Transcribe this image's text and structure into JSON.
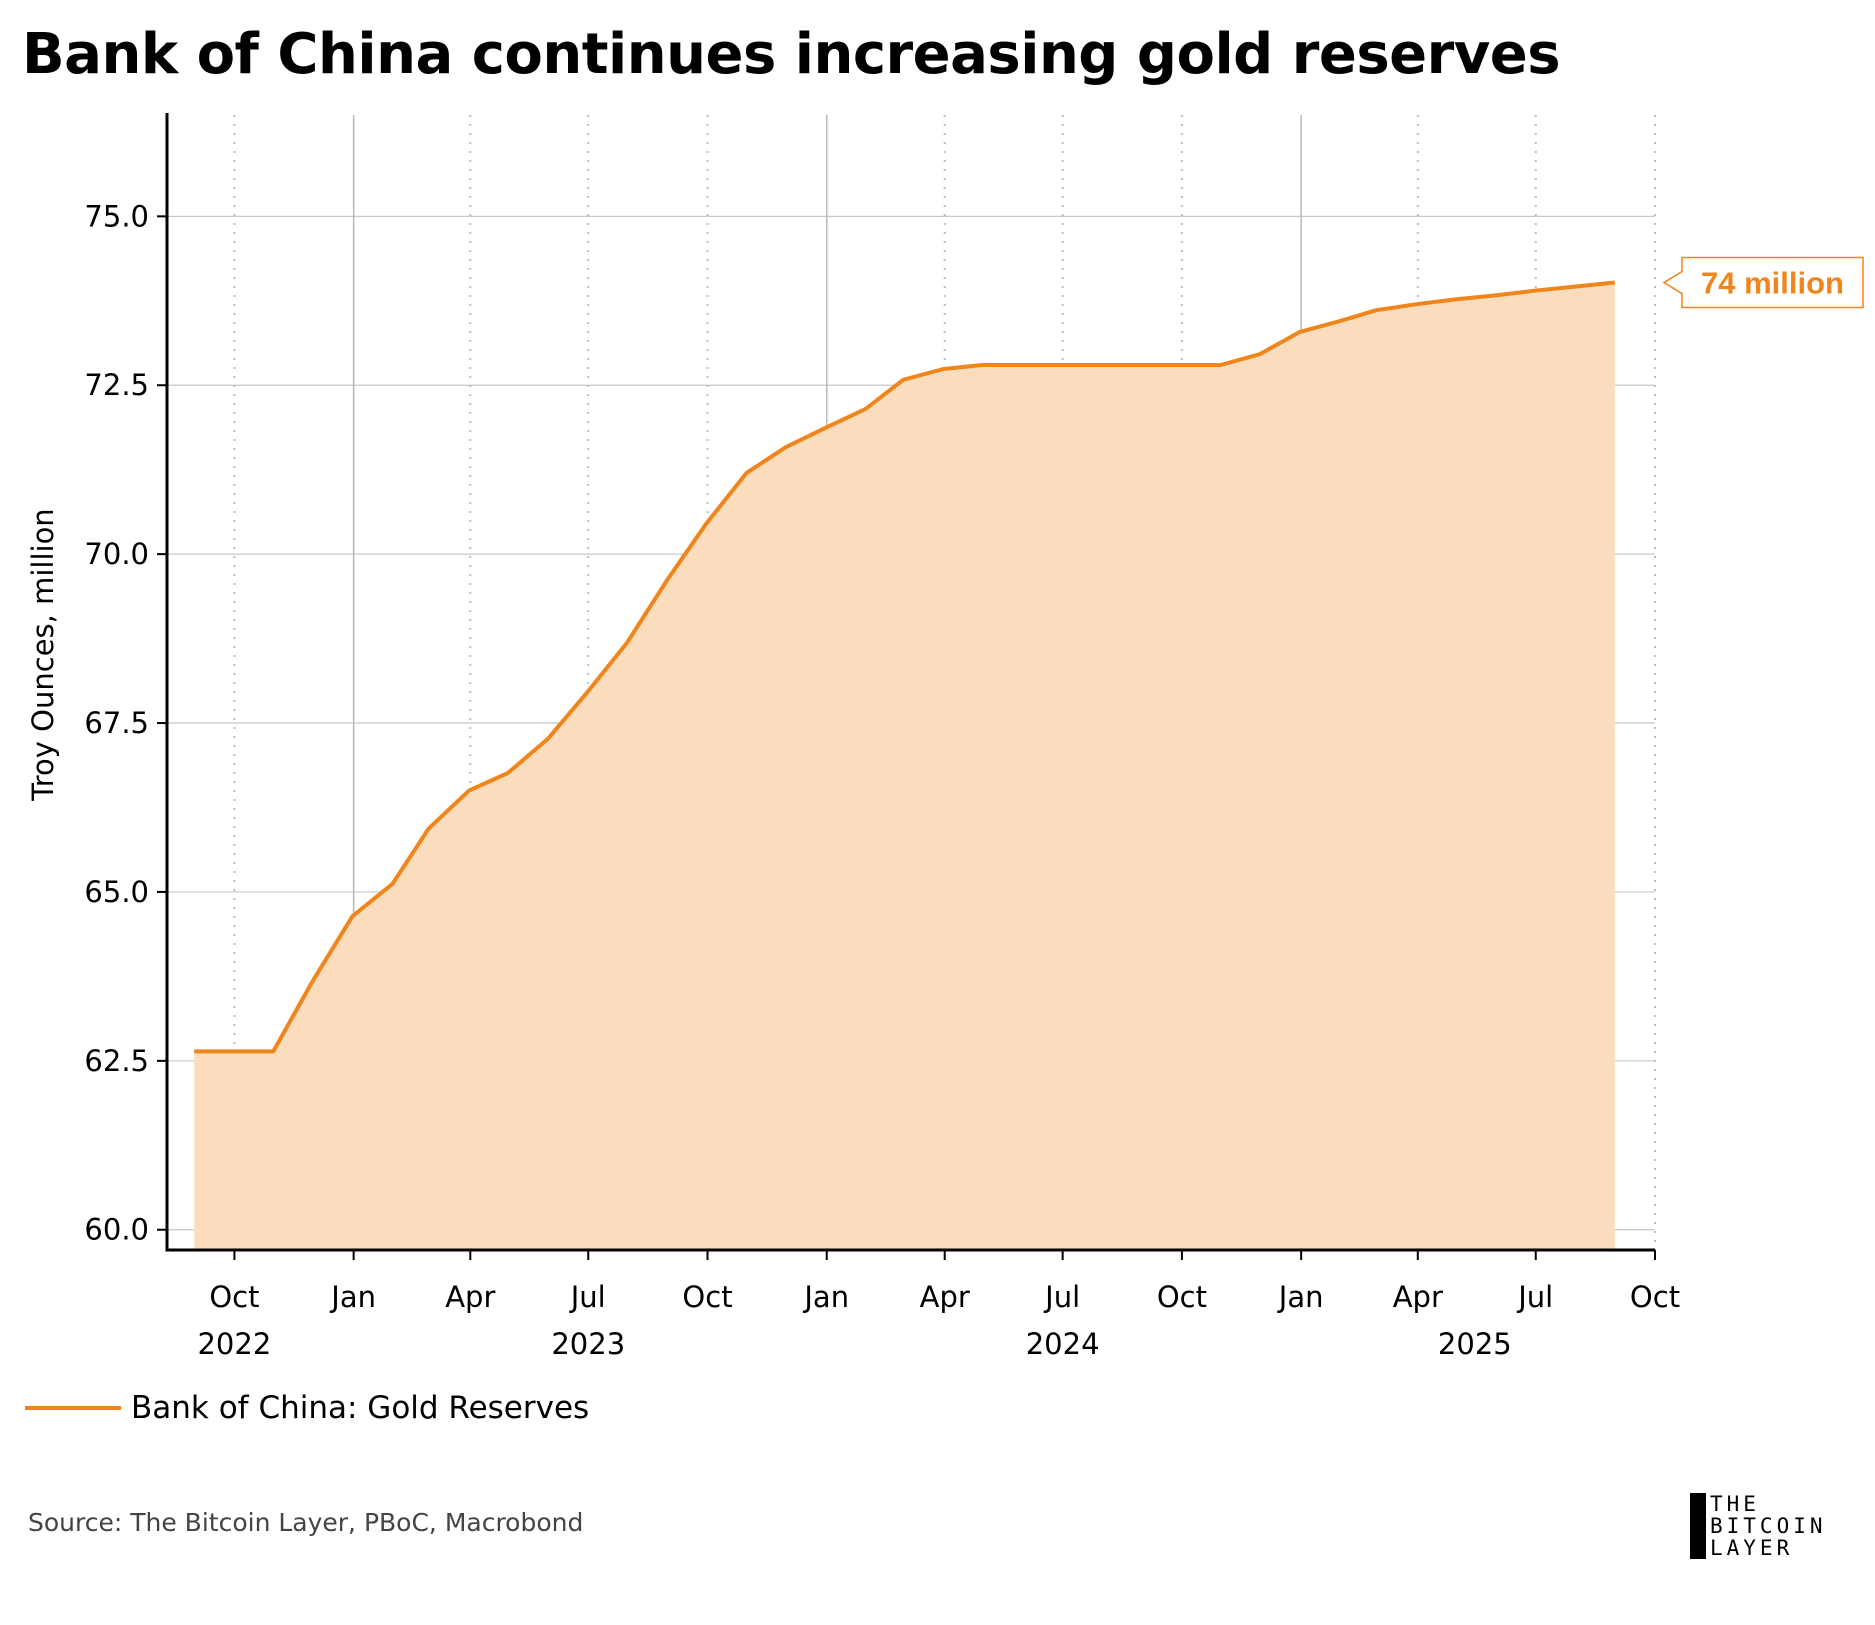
{
  "title": "Bank of China continues increasing gold reserves",
  "source": "Source: The Bitcoin Layer, PBoC, Macrobond",
  "logo": {
    "line1": "THE",
    "line2": "BITCOIN",
    "line3": "LAYER"
  },
  "colors": {
    "line": "#f0851c",
    "fill": "#fbdcbc",
    "grid": "#c8c8c8",
    "label_border": "#f0851c"
  },
  "chart_data": {
    "type": "area",
    "title": "Bank of China continues increasing gold reserves",
    "ylabel": "Troy Ounces, million",
    "xlabel": "",
    "ylim": [
      59.7,
      76.5
    ],
    "yticks": [
      "60.0",
      "62.5",
      "65.0",
      "67.5",
      "70.0",
      "72.5",
      "75.0"
    ],
    "ytick_values": [
      60.0,
      62.5,
      65.0,
      67.5,
      70.0,
      72.5,
      75.0
    ],
    "xlim": [
      "2022-08-10",
      "2025-10-01"
    ],
    "xticks": [
      {
        "date": "2022-10-01",
        "label": "Oct"
      },
      {
        "date": "2023-01-01",
        "label": "Jan"
      },
      {
        "date": "2023-04-01",
        "label": "Apr"
      },
      {
        "date": "2023-07-01",
        "label": "Jul"
      },
      {
        "date": "2023-10-01",
        "label": "Oct"
      },
      {
        "date": "2024-01-01",
        "label": "Jan"
      },
      {
        "date": "2024-04-01",
        "label": "Apr"
      },
      {
        "date": "2024-07-01",
        "label": "Jul"
      },
      {
        "date": "2024-10-01",
        "label": "Oct"
      },
      {
        "date": "2025-01-01",
        "label": "Jan"
      },
      {
        "date": "2025-04-01",
        "label": "Apr"
      },
      {
        "date": "2025-07-01",
        "label": "Jul"
      },
      {
        "date": "2025-10-01",
        "label": "Oct"
      }
    ],
    "year_labels": [
      {
        "date": "2022-10-01",
        "label": "2022"
      },
      {
        "date": "2023-07-01",
        "label": "2023"
      },
      {
        "date": "2024-07-01",
        "label": "2024"
      },
      {
        "date": "2025-05-15",
        "label": "2025"
      }
    ],
    "series": [
      {
        "name": "Bank of China: Gold Reserves",
        "x": [
          "2022-08-31",
          "2022-09-30",
          "2022-10-31",
          "2022-11-30",
          "2022-12-31",
          "2023-01-31",
          "2023-02-28",
          "2023-03-31",
          "2023-04-30",
          "2023-05-31",
          "2023-06-30",
          "2023-07-31",
          "2023-08-31",
          "2023-09-30",
          "2023-10-31",
          "2023-11-30",
          "2023-12-31",
          "2024-01-31",
          "2024-02-29",
          "2024-03-31",
          "2024-04-30",
          "2024-05-31",
          "2024-06-30",
          "2024-07-31",
          "2024-08-31",
          "2024-09-30",
          "2024-10-31",
          "2024-11-30",
          "2024-12-31",
          "2025-01-31",
          "2025-02-28",
          "2025-03-31",
          "2025-04-30",
          "2025-05-31",
          "2025-06-30",
          "2025-07-31",
          "2025-08-31"
        ],
        "values": [
          62.64,
          62.64,
          62.64,
          63.67,
          64.64,
          65.12,
          65.94,
          66.5,
          66.76,
          67.27,
          67.95,
          68.69,
          69.62,
          70.45,
          71.2,
          71.58,
          71.87,
          72.15,
          72.58,
          72.74,
          72.8,
          72.8,
          72.8,
          72.8,
          72.8,
          72.8,
          72.8,
          72.96,
          73.29,
          73.45,
          73.61,
          73.7,
          73.77,
          73.83,
          73.9,
          73.96,
          74.02
        ]
      }
    ],
    "end_label": "74 million",
    "legend": {
      "position": "bottom-left",
      "entries": [
        "Bank of China: Gold Reserves"
      ]
    },
    "grid": true
  }
}
